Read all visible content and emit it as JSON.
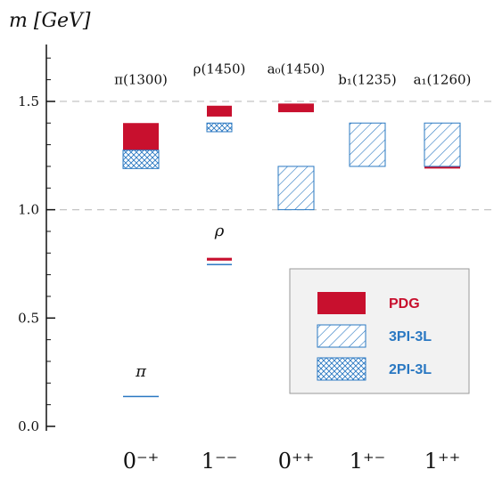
{
  "chart_data": {
    "type": "bar",
    "ylabel": "m [GeV]",
    "ylim": [
      0.0,
      1.75
    ],
    "y_ticks": [
      "0.0",
      "0.5",
      "1.0",
      "1.5"
    ],
    "y_tick_values": [
      0.0,
      0.5,
      1.0,
      1.5
    ],
    "dashed_gridlines": [
      1.0,
      1.5
    ],
    "categories": [
      "0⁻⁺",
      "1⁻⁻",
      "0⁺⁺",
      "1⁺⁻",
      "1⁺⁺"
    ],
    "annotations": [
      {
        "text": "π(1300)",
        "category": 0,
        "y": 1.58
      },
      {
        "text": "ρ(1450)",
        "category": 1,
        "y": 1.63
      },
      {
        "text": "a₀(1450)",
        "category": 2,
        "y": 1.63
      },
      {
        "text": "b₁(1235)",
        "category": 3,
        "y": 1.58
      },
      {
        "text": "a₁(1260)",
        "category": 4,
        "y": 1.58
      },
      {
        "text": "ρ",
        "category": 1,
        "y": 0.88
      },
      {
        "text": "π",
        "category": 0,
        "y": 0.23
      }
    ],
    "legend": {
      "position": "bottom-right",
      "entries": [
        {
          "label": "PDG",
          "style": "solid"
        },
        {
          "label": "3PI-3L",
          "style": "hatch"
        },
        {
          "label": "2PI-3L",
          "style": "crosshatch"
        }
      ]
    },
    "colors": {
      "PDG": "#c8102e",
      "3PI-3L": "#2a78c2",
      "2PI-3L": "#2a78c2"
    },
    "series": [
      {
        "name": "PDG",
        "style": "solid",
        "values": [
          [
            {
              "low": 1.2,
              "high": 1.4
            }
          ],
          [
            {
              "low": 1.43,
              "high": 1.48
            },
            {
              "low": 0.765,
              "high": 0.778
            }
          ],
          [
            {
              "low": 1.45,
              "high": 1.49
            }
          ],
          [
            {
              "low": 1.225,
              "high": 1.24
            }
          ],
          [
            {
              "low": 1.19,
              "high": 1.27
            }
          ]
        ]
      },
      {
        "name": "3PI-3L",
        "style": "hatch",
        "values": [
          [],
          [
            {
              "low": 0.744,
              "high": 0.75
            }
          ],
          [
            {
              "low": 1.0,
              "high": 1.2
            }
          ],
          [
            {
              "low": 1.2,
              "high": 1.4
            }
          ],
          [
            {
              "low": 1.2,
              "high": 1.4
            }
          ]
        ]
      },
      {
        "name": "2PI-3L",
        "style": "crosshatch",
        "values": [
          [
            {
              "low": 1.19,
              "high": 1.275
            },
            {
              "low": 0.135,
              "high": 0.141
            }
          ],
          [
            {
              "low": 1.36,
              "high": 1.4
            }
          ],
          [],
          [],
          []
        ]
      }
    ]
  }
}
